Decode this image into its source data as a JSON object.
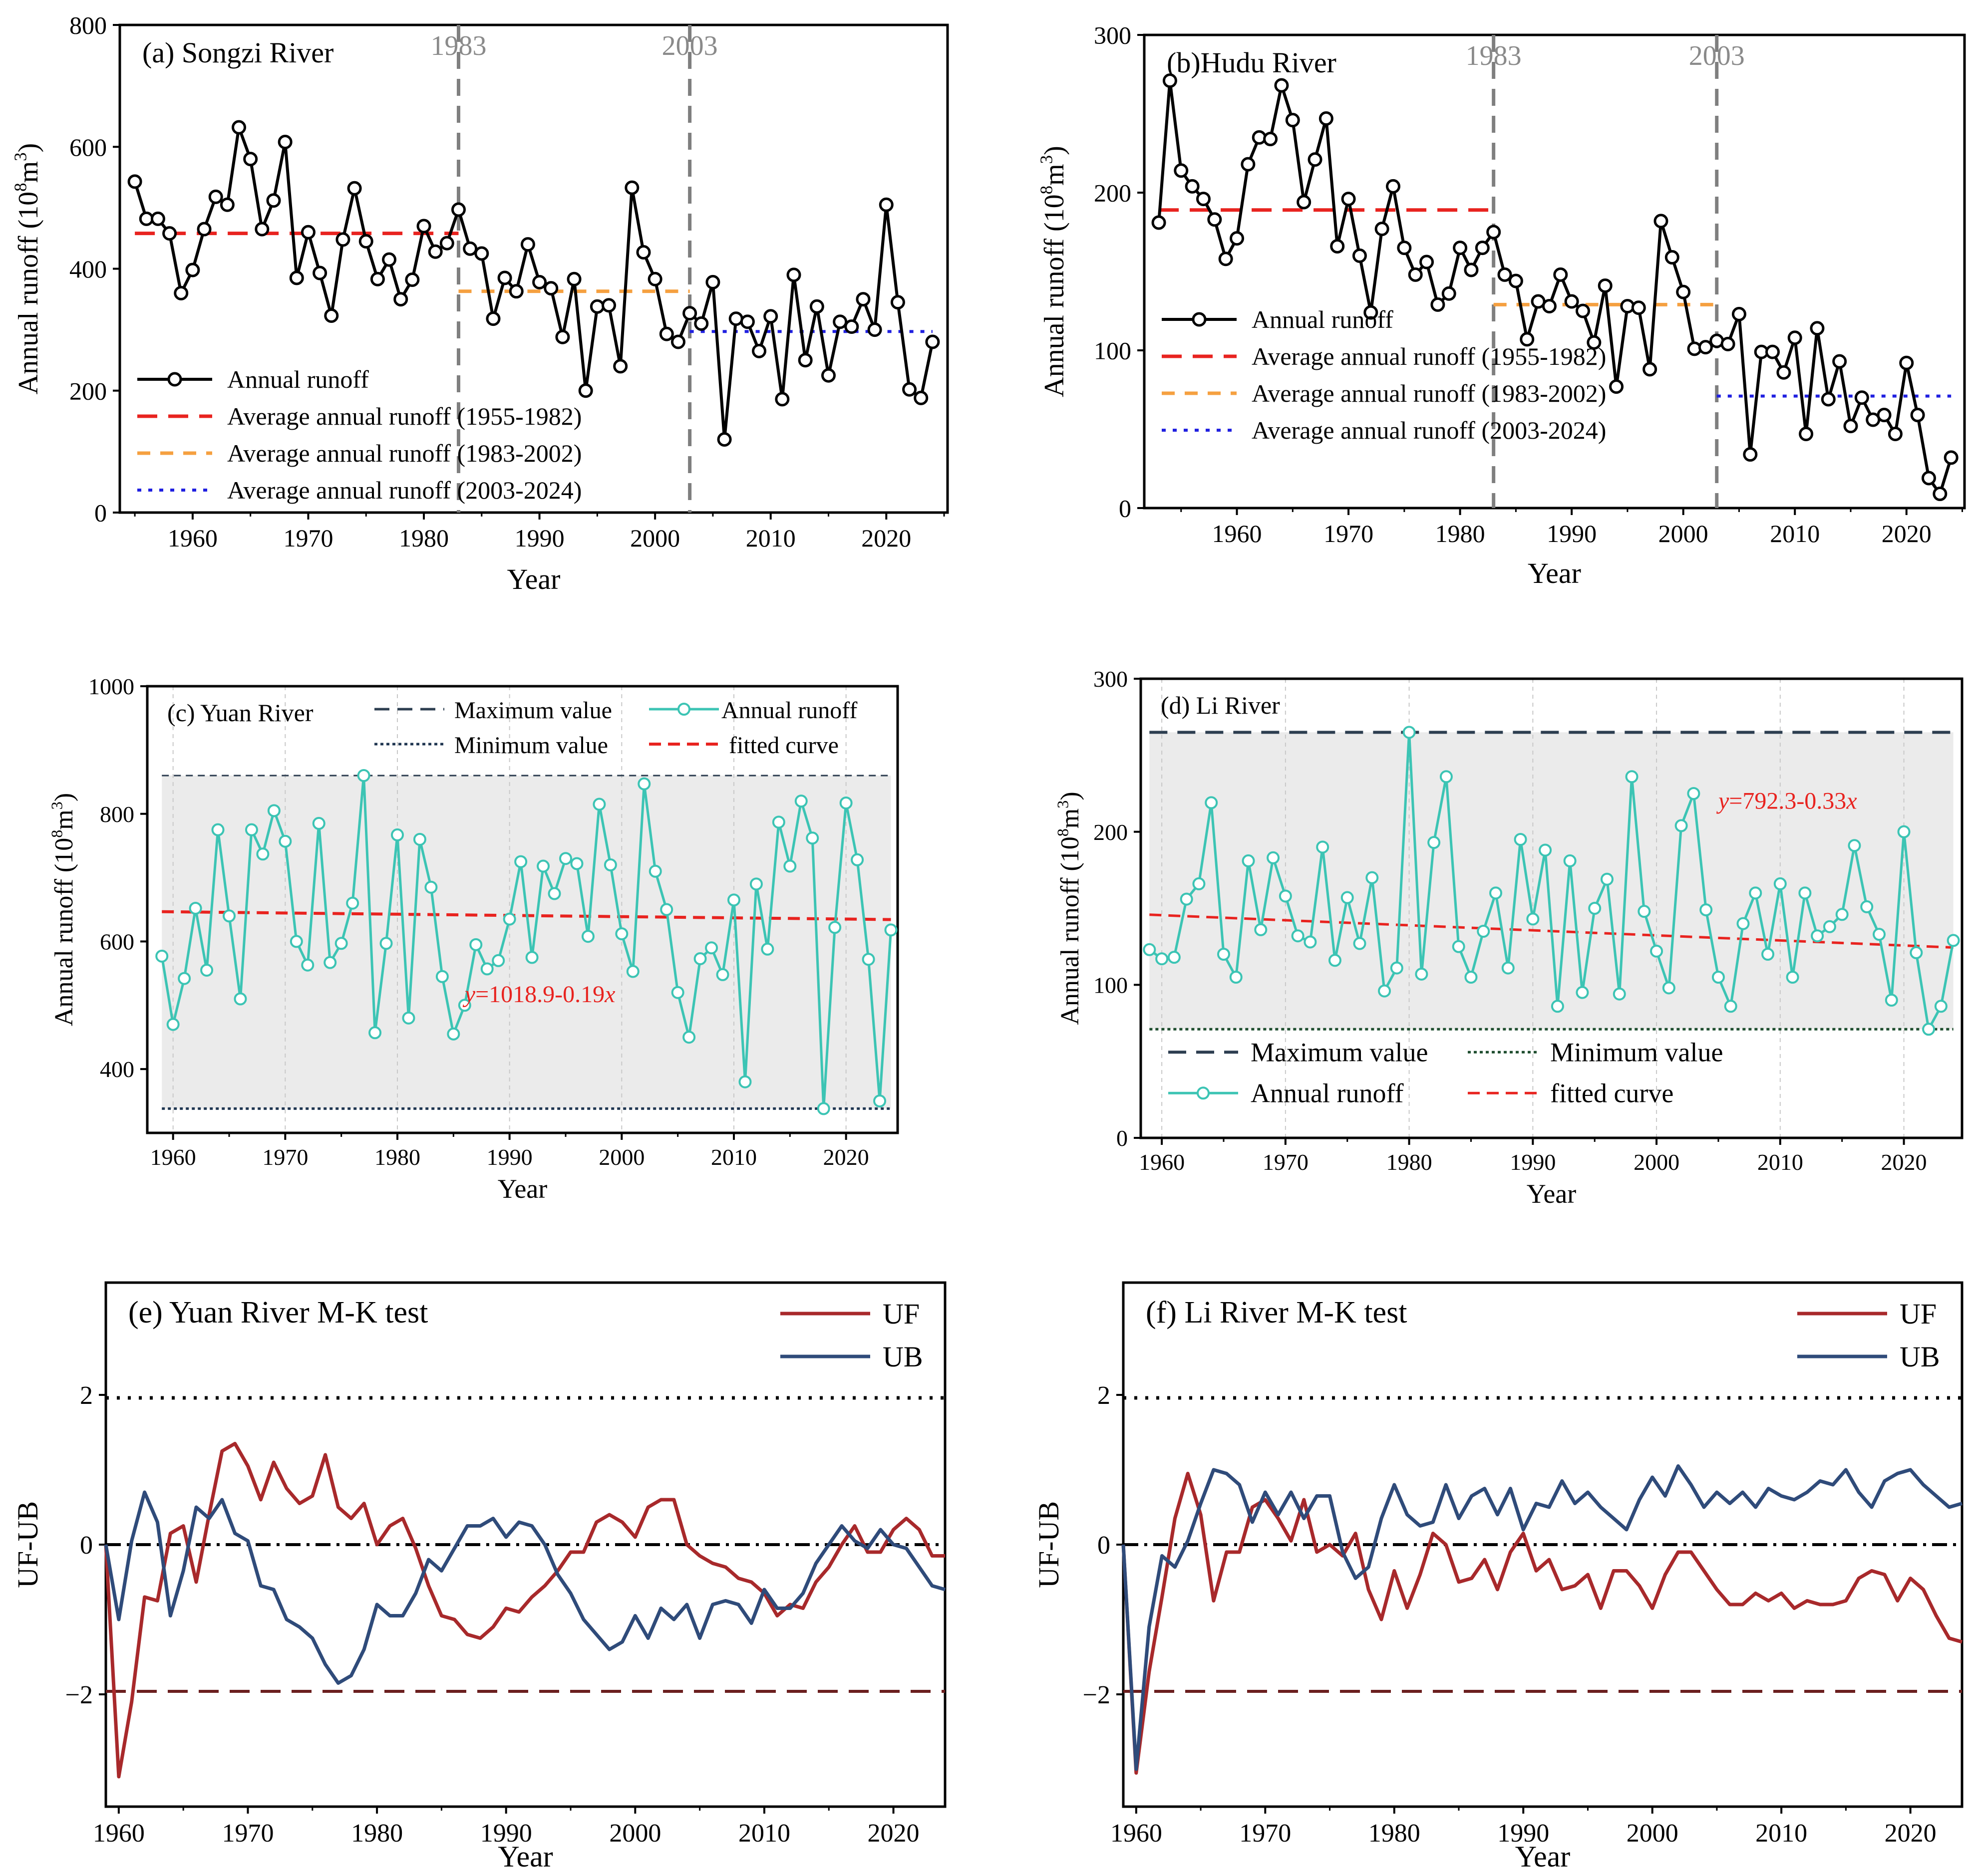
{
  "figure": {
    "x_axis_label": "Year"
  },
  "chart_data": [
    {
      "id": "a",
      "type": "line",
      "title": "(a) Songzi River",
      "xlabel": "Year",
      "ylabel": "Annual runoff",
      "ylabel_unit": "(10",
      "ylim": [
        0,
        800
      ],
      "xlim": [
        1953.7,
        2025.3
      ],
      "xticks": [
        1960,
        1970,
        1980,
        1990,
        2000,
        2010,
        2020
      ],
      "yticks": [
        0,
        200,
        400,
        600,
        800
      ],
      "x_start": 1955,
      "values": [
        543,
        482,
        482,
        458,
        360,
        398,
        465,
        518,
        505,
        632,
        580,
        465,
        512,
        608,
        385,
        460,
        393,
        323,
        448,
        532,
        445,
        383,
        415,
        350,
        382,
        470,
        428,
        442,
        497,
        433,
        425,
        318,
        385,
        363,
        440,
        378,
        368,
        288,
        383,
        200,
        338,
        340,
        240,
        533,
        427,
        383,
        293,
        280,
        327,
        310,
        378,
        120,
        318,
        313,
        265,
        322,
        186,
        390,
        250,
        338,
        225,
        313,
        305,
        350,
        300,
        505,
        345,
        202,
        188,
        280
      ],
      "vlines": [
        {
          "x": 1983,
          "label": "1983"
        },
        {
          "x": 2003,
          "label": "2003"
        }
      ],
      "averages": [
        {
          "from": 1955,
          "to": 1983,
          "y": 458,
          "color": "#e8231f",
          "style": "longdash",
          "label": "Average annual runoff (1955-1982)"
        },
        {
          "from": 1983,
          "to": 2003,
          "y": 363,
          "color": "#f5a040",
          "style": "dash",
          "label": "Average annual runoff (1983-2002)"
        },
        {
          "from": 2003,
          "to": 2024,
          "y": 297,
          "color": "#2020e0",
          "style": "dot",
          "label": "Average annual runoff (2003-2024)"
        }
      ],
      "legend_line": "Annual runoff"
    },
    {
      "id": "b",
      "type": "line",
      "title": "(b)Hudu River",
      "xlabel": "Year",
      "ylabel": "Annual runoff",
      "ylabel_unit": "(10",
      "ylim": [
        0,
        300
      ],
      "xlim": [
        1951.7,
        2025.2
      ],
      "xticks": [
        1960,
        1970,
        1980,
        1990,
        2000,
        2010,
        2020
      ],
      "yticks": [
        0,
        100,
        200,
        300
      ],
      "x_start": 1953,
      "values": [
        181,
        271,
        214,
        204,
        196,
        183,
        158,
        171,
        218,
        235,
        234,
        268,
        246,
        194,
        221,
        247,
        166,
        196,
        160,
        124,
        177,
        204,
        165,
        148,
        156,
        129,
        136,
        165,
        151,
        165,
        175,
        148,
        144,
        107,
        131,
        128,
        148,
        131,
        125,
        105,
        141,
        77,
        128,
        127,
        88,
        182,
        159,
        137,
        101,
        102,
        106,
        104,
        123,
        34,
        99,
        99,
        86,
        108,
        47,
        114,
        69,
        93,
        52,
        70,
        56,
        59,
        47,
        92,
        59,
        19,
        9,
        32
      ],
      "vlines": [
        {
          "x": 1983,
          "label": "1983"
        },
        {
          "x": 2003,
          "label": "2003"
        }
      ],
      "averages": [
        {
          "from": 1953,
          "to": 1983,
          "y": 189,
          "color": "#e8231f",
          "style": "longdash",
          "label": "Average annual runoff (1955-1982)"
        },
        {
          "from": 1983,
          "to": 2003,
          "y": 129,
          "color": "#f5a040",
          "style": "dash",
          "label": "Average annual runoff (1983-2002)"
        },
        {
          "from": 2003,
          "to": 2024,
          "y": 71,
          "color": "#2020e0",
          "style": "dot",
          "label": "Average annual runoff (2003-2024)"
        }
      ],
      "legend_line": "Annual runoff"
    },
    {
      "id": "c",
      "type": "line",
      "title": "(c) Yuan River",
      "xlabel": "Year",
      "ylabel": "Annual runoff",
      "ylabel_unit": "(10",
      "ylim": [
        300,
        1000
      ],
      "xlim": [
        1957.7,
        2024.6
      ],
      "xticks": [
        1960,
        1970,
        1980,
        1990,
        2000,
        2010,
        2020
      ],
      "yticks": [
        400,
        600,
        800,
        1000
      ],
      "x_start": 1959,
      "values": [
        577,
        470,
        542,
        652,
        555,
        775,
        640,
        510,
        775,
        737,
        805,
        757,
        600,
        563,
        785,
        567,
        597,
        660,
        860,
        457,
        597,
        767,
        480,
        760,
        685,
        545,
        455,
        500,
        595,
        557,
        570,
        635,
        725,
        575,
        718,
        675,
        730,
        722,
        608,
        815,
        720,
        612,
        553,
        847,
        710,
        650,
        520,
        450,
        573,
        590,
        548,
        665,
        380,
        690,
        588,
        787,
        718,
        820,
        762,
        338,
        622,
        817,
        728,
        572,
        350,
        618
      ],
      "max_value": 860,
      "min_value": 338,
      "fit": {
        "a": 1018.9,
        "b": -0.19,
        "text_y": "y",
        "text_rest": "=1018.9-0.19",
        "text_x": "x"
      },
      "legend": {
        "max": "Maximum value",
        "min": "Minimum value",
        "runoff": "Annual runoff",
        "fit": "fitted curve"
      }
    },
    {
      "id": "d",
      "type": "line",
      "title": "(d) Li River",
      "xlabel": "Year",
      "ylabel": "Annual runoff",
      "ylabel_unit": "(10",
      "ylim": [
        0,
        300
      ],
      "xlim": [
        1958.3,
        2024.7
      ],
      "xticks": [
        1960,
        1970,
        1980,
        1990,
        2000,
        2010,
        2020
      ],
      "yticks": [
        0,
        100,
        200,
        300
      ],
      "x_start": 1959,
      "values": [
        123,
        117,
        118,
        156,
        166,
        219,
        120,
        105,
        181,
        136,
        183,
        158,
        132,
        128,
        190,
        116,
        157,
        127,
        170,
        96,
        111,
        265,
        107,
        193,
        236,
        125,
        105,
        135,
        160,
        111,
        195,
        143,
        188,
        86,
        181,
        95,
        150,
        169,
        94,
        236,
        148,
        122,
        98,
        204,
        225,
        149,
        105,
        86,
        140,
        160,
        120,
        166,
        105,
        160,
        132,
        138,
        146,
        191,
        151,
        133,
        90,
        200,
        121,
        71,
        86,
        129
      ],
      "max_value": 265,
      "min_value": 71,
      "fit": {
        "a": 792.3,
        "b": -0.33,
        "text_y": "y",
        "text_rest": "=792.3-0.33",
        "text_x": "x"
      },
      "legend": {
        "max": "Maximum value",
        "min": "Minimum value",
        "runoff": "Annual runoff",
        "fit": "fitted curve"
      }
    },
    {
      "id": "e",
      "type": "line",
      "title": "(e) Yuan River M-K test",
      "xlabel": "Year",
      "ylabel": "UF-UB",
      "ylim": [
        -3.5,
        3.5
      ],
      "xlim": [
        1959,
        2024
      ],
      "xticks": [
        1960,
        1970,
        1980,
        1990,
        2000,
        2010,
        2020
      ],
      "yticks": [
        -2,
        0,
        2
      ],
      "ytick_labels": [
        "−2",
        "0",
        "2"
      ],
      "x_start": 1959,
      "series": [
        {
          "name": "UF",
          "color": "#a8292b",
          "values": [
            0,
            -3.1,
            -2.1,
            -0.7,
            -0.75,
            0.15,
            0.25,
            -0.5,
            0.4,
            1.25,
            1.35,
            1.05,
            0.6,
            1.1,
            0.75,
            0.55,
            0.65,
            1.2,
            0.5,
            0.35,
            0.55,
            0,
            0.25,
            0.35,
            -0.05,
            -0.55,
            -0.95,
            -1.0,
            -1.2,
            -1.25,
            -1.1,
            -0.85,
            -0.9,
            -0.7,
            -0.55,
            -0.35,
            -0.1,
            -0.1,
            0.3,
            0.4,
            0.3,
            0.1,
            0.5,
            0.6,
            0.6,
            0,
            -0.15,
            -0.25,
            -0.3,
            -0.45,
            -0.5,
            -0.65,
            -0.95,
            -0.8,
            -0.85,
            -0.5,
            -0.3,
            0,
            0.25,
            -0.1,
            -0.1,
            0.2,
            0.35,
            0.2,
            -0.15,
            -0.15
          ]
        },
        {
          "name": "UB",
          "color": "#2f4b7a",
          "values": [
            0,
            -1.0,
            0.05,
            0.7,
            0.3,
            -0.95,
            -0.35,
            0.5,
            0.35,
            0.6,
            0.15,
            0.05,
            -0.55,
            -0.6,
            -1.0,
            -1.1,
            -1.25,
            -1.6,
            -1.85,
            -1.75,
            -1.4,
            -0.8,
            -0.95,
            -0.95,
            -0.65,
            -0.2,
            -0.35,
            -0.05,
            0.25,
            0.25,
            0.35,
            0.1,
            0.3,
            0.25,
            0,
            -0.4,
            -0.65,
            -1.0,
            -1.2,
            -1.4,
            -1.3,
            -0.95,
            -1.25,
            -0.85,
            -1.0,
            -0.8,
            -1.25,
            -0.8,
            -0.75,
            -0.8,
            -1.05,
            -0.6,
            -0.85,
            -0.85,
            -0.65,
            -0.25,
            0,
            0.25,
            0.05,
            -0.05,
            0.2,
            0,
            -0.05,
            -0.3,
            -0.55,
            -0.6
          ]
        }
      ],
      "hlines": [
        {
          "y": 1.96,
          "style": "dot",
          "color": "#000000"
        },
        {
          "y": 0,
          "style": "dashdot",
          "color": "#000000"
        },
        {
          "y": -1.96,
          "style": "longdash",
          "color": "#6b1f1f"
        }
      ]
    },
    {
      "id": "f",
      "type": "line",
      "title": "(f) Li River M-K test",
      "xlabel": "Year",
      "ylabel": "UF-UB",
      "ylim": [
        -3.5,
        3.5
      ],
      "xlim": [
        1959,
        2024
      ],
      "xticks": [
        1960,
        1970,
        1980,
        1990,
        2000,
        2010,
        2020
      ],
      "yticks": [
        -2,
        0,
        2
      ],
      "ytick_labels": [
        "−2",
        "0",
        "2"
      ],
      "x_start": 1959,
      "series": [
        {
          "name": "UF",
          "color": "#a8292b",
          "values": [
            0,
            -3.05,
            -1.7,
            -0.7,
            0.35,
            0.95,
            0.4,
            -0.75,
            -0.1,
            -0.1,
            0.5,
            0.6,
            0.35,
            0.05,
            0.6,
            -0.1,
            0,
            -0.15,
            0.15,
            -0.6,
            -1.0,
            -0.35,
            -0.85,
            -0.4,
            0.15,
            0,
            -0.5,
            -0.45,
            -0.2,
            -0.6,
            -0.1,
            0.15,
            -0.35,
            -0.2,
            -0.6,
            -0.55,
            -0.4,
            -0.85,
            -0.35,
            -0.35,
            -0.55,
            -0.85,
            -0.4,
            -0.1,
            -0.1,
            -0.35,
            -0.6,
            -0.8,
            -0.8,
            -0.65,
            -0.75,
            -0.65,
            -0.85,
            -0.75,
            -0.8,
            -0.8,
            -0.75,
            -0.45,
            -0.35,
            -0.4,
            -0.75,
            -0.45,
            -0.6,
            -0.95,
            -1.25,
            -1.3
          ]
        },
        {
          "name": "UB",
          "color": "#2f4b7a",
          "values": [
            0,
            -3.0,
            -1.1,
            -0.15,
            -0.3,
            0.05,
            0.55,
            1.0,
            0.95,
            0.8,
            0.3,
            0.7,
            0.4,
            0.7,
            0.35,
            0.65,
            0.65,
            -0.1,
            -0.45,
            -0.3,
            0.35,
            0.8,
            0.4,
            0.25,
            0.3,
            0.8,
            0.35,
            0.65,
            0.75,
            0.4,
            0.75,
            0.2,
            0.55,
            0.5,
            0.85,
            0.55,
            0.7,
            0.5,
            0.35,
            0.2,
            0.6,
            0.9,
            0.65,
            1.05,
            0.8,
            0.5,
            0.7,
            0.55,
            0.7,
            0.5,
            0.75,
            0.65,
            0.6,
            0.7,
            0.85,
            0.8,
            1.0,
            0.7,
            0.5,
            0.85,
            0.95,
            1.0,
            0.8,
            0.65,
            0.5,
            0.55
          ]
        }
      ],
      "hlines": [
        {
          "y": 1.96,
          "style": "dot",
          "color": "#000000"
        },
        {
          "y": 0,
          "style": "dashdot",
          "color": "#000000"
        },
        {
          "y": -1.96,
          "style": "longdash",
          "color": "#6b1f1f"
        }
      ]
    }
  ]
}
